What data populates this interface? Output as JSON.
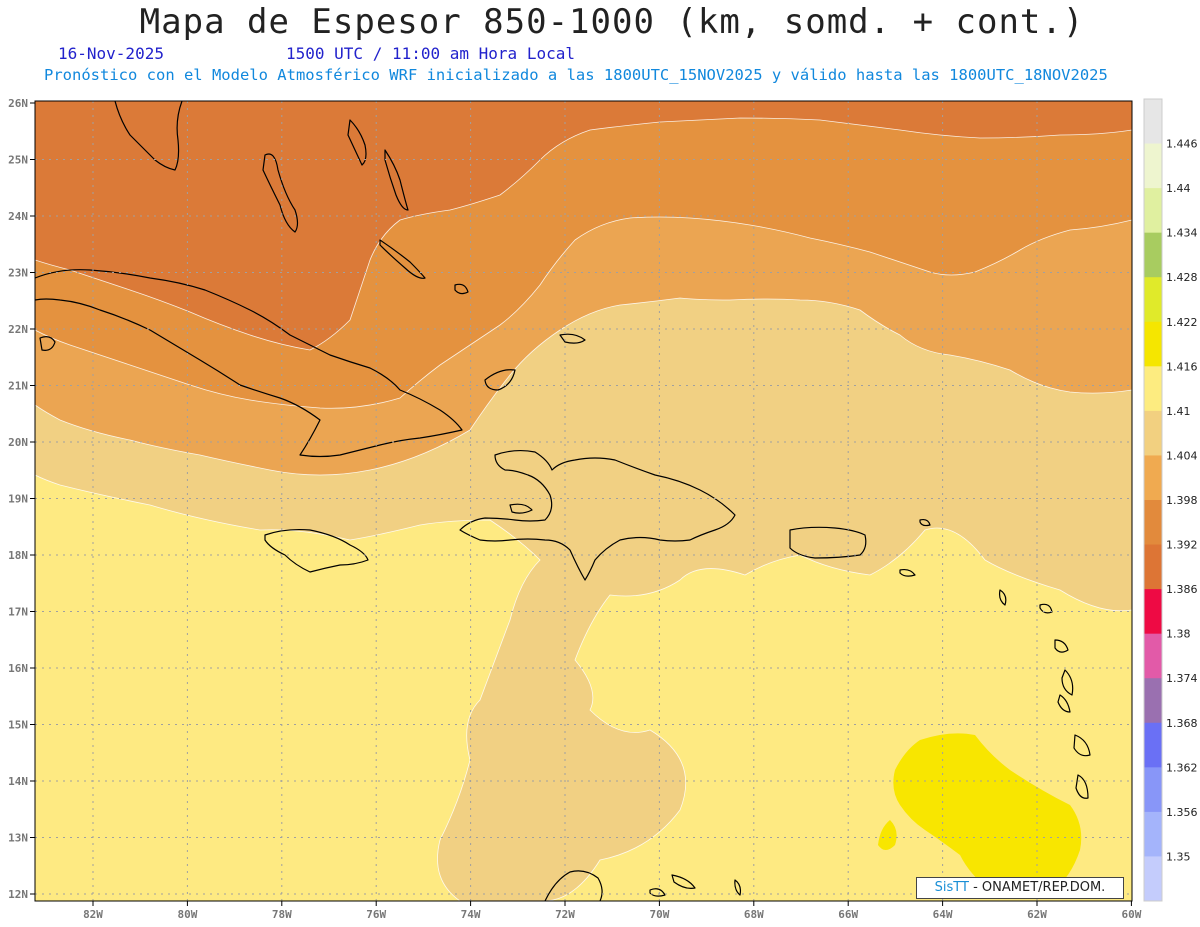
{
  "header": {
    "title": "Mapa de Espesor 850-1000 (km, somd. + cont.)",
    "date": "16-Nov-2025",
    "time": "1500 UTC / 11:00 am Hora Local",
    "description": "Pronóstico con el Modelo Atmosférico WRF inicializado a las 1800UTC_15NOV2025 y válido hasta las  1800UTC_18NOV2025"
  },
  "axes": {
    "lon_labels": [
      "82W",
      "80W",
      "78W",
      "76W",
      "74W",
      "72W",
      "70W",
      "68W",
      "66W",
      "64W",
      "62W",
      "60W"
    ],
    "lat_labels": [
      "26N",
      "25N",
      "24N",
      "23N",
      "22N",
      "21N",
      "20N",
      "19N",
      "18N",
      "17N",
      "16N",
      "15N",
      "14N",
      "13N",
      "12N"
    ]
  },
  "colorbar": {
    "levels": [
      "1.446",
      "1.44",
      "1.434",
      "1.428",
      "1.422",
      "1.416",
      "1.41",
      "1.404",
      "1.398",
      "1.392",
      "1.386",
      "1.38",
      "1.374",
      "1.368",
      "1.362",
      "1.356",
      "1.35"
    ],
    "colors": [
      "#e6e6e6",
      "#eef5cf",
      "#e0f0a0",
      "#a8cc60",
      "#e0ea2a",
      "#f5e600",
      "#fdec80",
      "#f2d080",
      "#f0aa50",
      "#e28a3c",
      "#dd7535",
      "#ee0a44",
      "#e25aa8",
      "#9a70b0",
      "#6a70f5",
      "#8896f8",
      "#a4b4fb",
      "#c4ccfc"
    ]
  },
  "credit": {
    "brand": "SisTT",
    "text": "- ONAMET/REP.DOM."
  },
  "map_colors": {
    "ocean_yellow": "#feea82",
    "tan": "#f1d083",
    "light_orange": "#eba552",
    "orange": "#e4923f",
    "dark_orange": "#db7a38",
    "red": "#eb0b45",
    "magenta": "#e45fa8",
    "bright_yellow": "#f8e600",
    "coast": "#000000",
    "grid": "#a0a0a0"
  }
}
